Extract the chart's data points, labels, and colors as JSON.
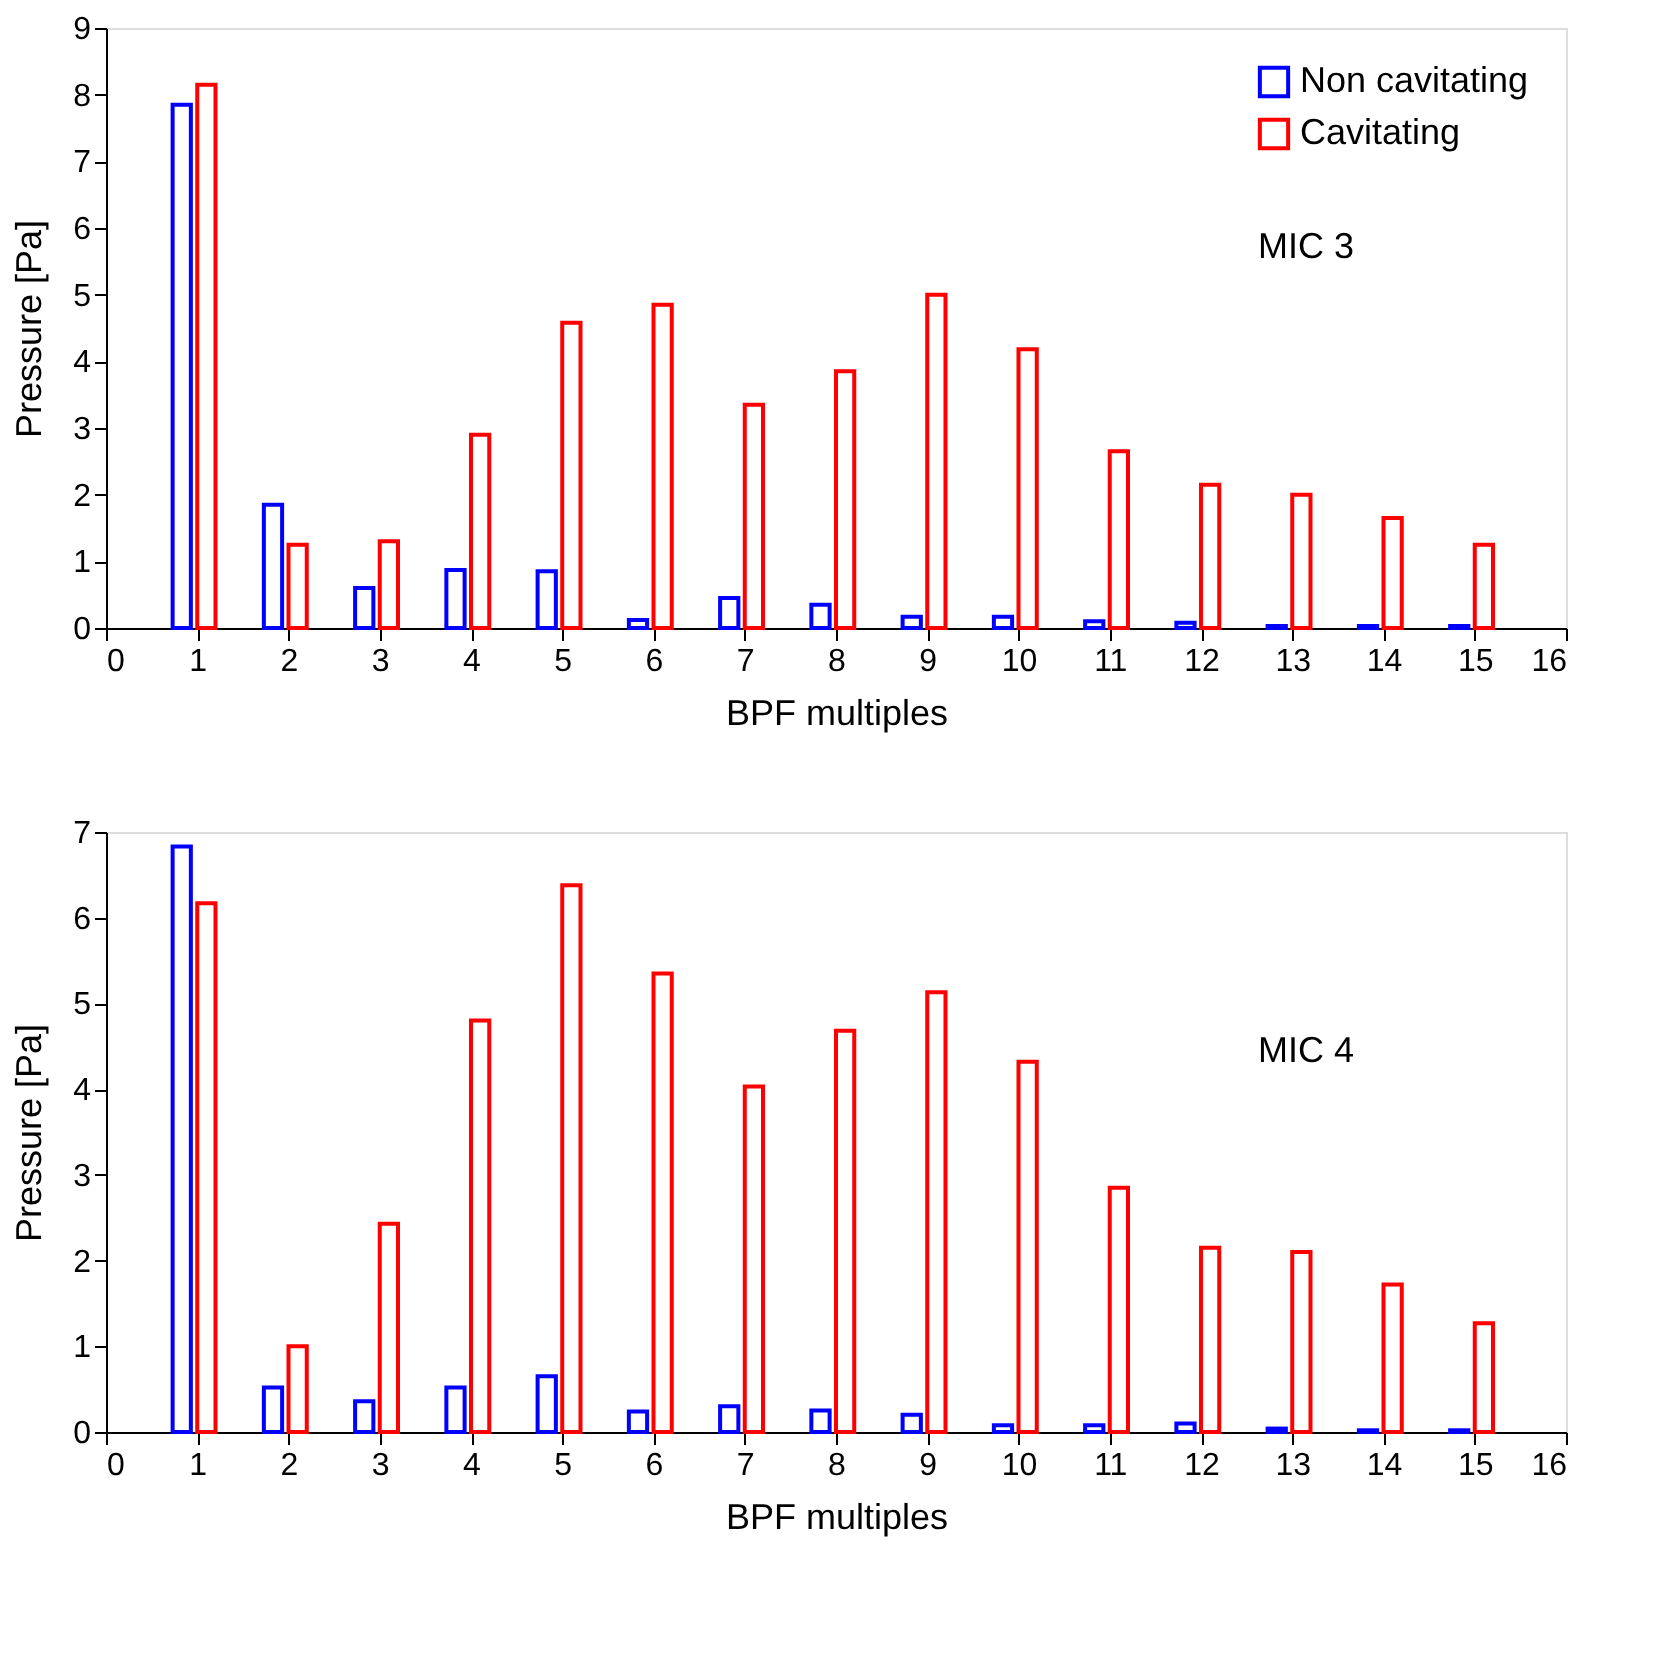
{
  "chart_data": [
    {
      "type": "bar",
      "xlabel": "BPF multiples",
      "ylabel": "Pressure [Pa]",
      "annotations": [
        "MIC 3"
      ],
      "x": [
        1,
        2,
        3,
        4,
        5,
        6,
        7,
        8,
        9,
        10,
        11,
        12,
        13,
        14,
        15
      ],
      "series": [
        {
          "name": "Non cavitating",
          "color": "#0000ff",
          "values": [
            7.85,
            1.85,
            0.6,
            0.87,
            0.85,
            0.12,
            0.45,
            0.35,
            0.17,
            0.17,
            0.1,
            0.08,
            0.03,
            0.03,
            0.03
          ]
        },
        {
          "name": "Cavitating",
          "color": "#ff0000",
          "values": [
            8.15,
            1.25,
            1.3,
            2.9,
            4.58,
            4.85,
            3.35,
            3.85,
            5.0,
            4.18,
            2.65,
            2.15,
            2.0,
            1.65,
            1.25
          ]
        }
      ],
      "xlim": [
        0,
        16
      ],
      "xticks": [
        0,
        1,
        2,
        3,
        4,
        5,
        6,
        7,
        8,
        9,
        10,
        11,
        12,
        13,
        14,
        15,
        16
      ],
      "ylim": [
        0,
        9
      ],
      "yticks": [
        0,
        1,
        2,
        3,
        4,
        5,
        6,
        7,
        8,
        9
      ],
      "grid": false,
      "legend": "top right"
    },
    {
      "type": "bar",
      "xlabel": "BPF multiples",
      "ylabel": "Pressure [Pa]",
      "annotations": [
        "MIC 4"
      ],
      "x": [
        1,
        2,
        3,
        4,
        5,
        6,
        7,
        8,
        9,
        10,
        11,
        12,
        13,
        14,
        15
      ],
      "series": [
        {
          "name": "Non cavitating",
          "color": "#0000ff",
          "values": [
            6.83,
            0.52,
            0.36,
            0.52,
            0.65,
            0.24,
            0.3,
            0.25,
            0.2,
            0.08,
            0.08,
            0.1,
            0.04,
            0.02,
            0.02
          ]
        },
        {
          "name": "Cavitating",
          "color": "#ff0000",
          "values": [
            6.17,
            1.0,
            2.43,
            4.8,
            6.38,
            5.35,
            4.03,
            4.68,
            5.13,
            4.32,
            2.85,
            2.15,
            2.1,
            1.72,
            1.27
          ]
        }
      ],
      "xlim": [
        0,
        16
      ],
      "xticks": [
        0,
        1,
        2,
        3,
        4,
        5,
        6,
        7,
        8,
        9,
        10,
        11,
        12,
        13,
        14,
        15,
        16
      ],
      "ylim": [
        0,
        7
      ],
      "yticks": [
        0,
        1,
        2,
        3,
        4,
        5,
        6,
        7
      ],
      "grid": false,
      "legend": "top right"
    }
  ]
}
